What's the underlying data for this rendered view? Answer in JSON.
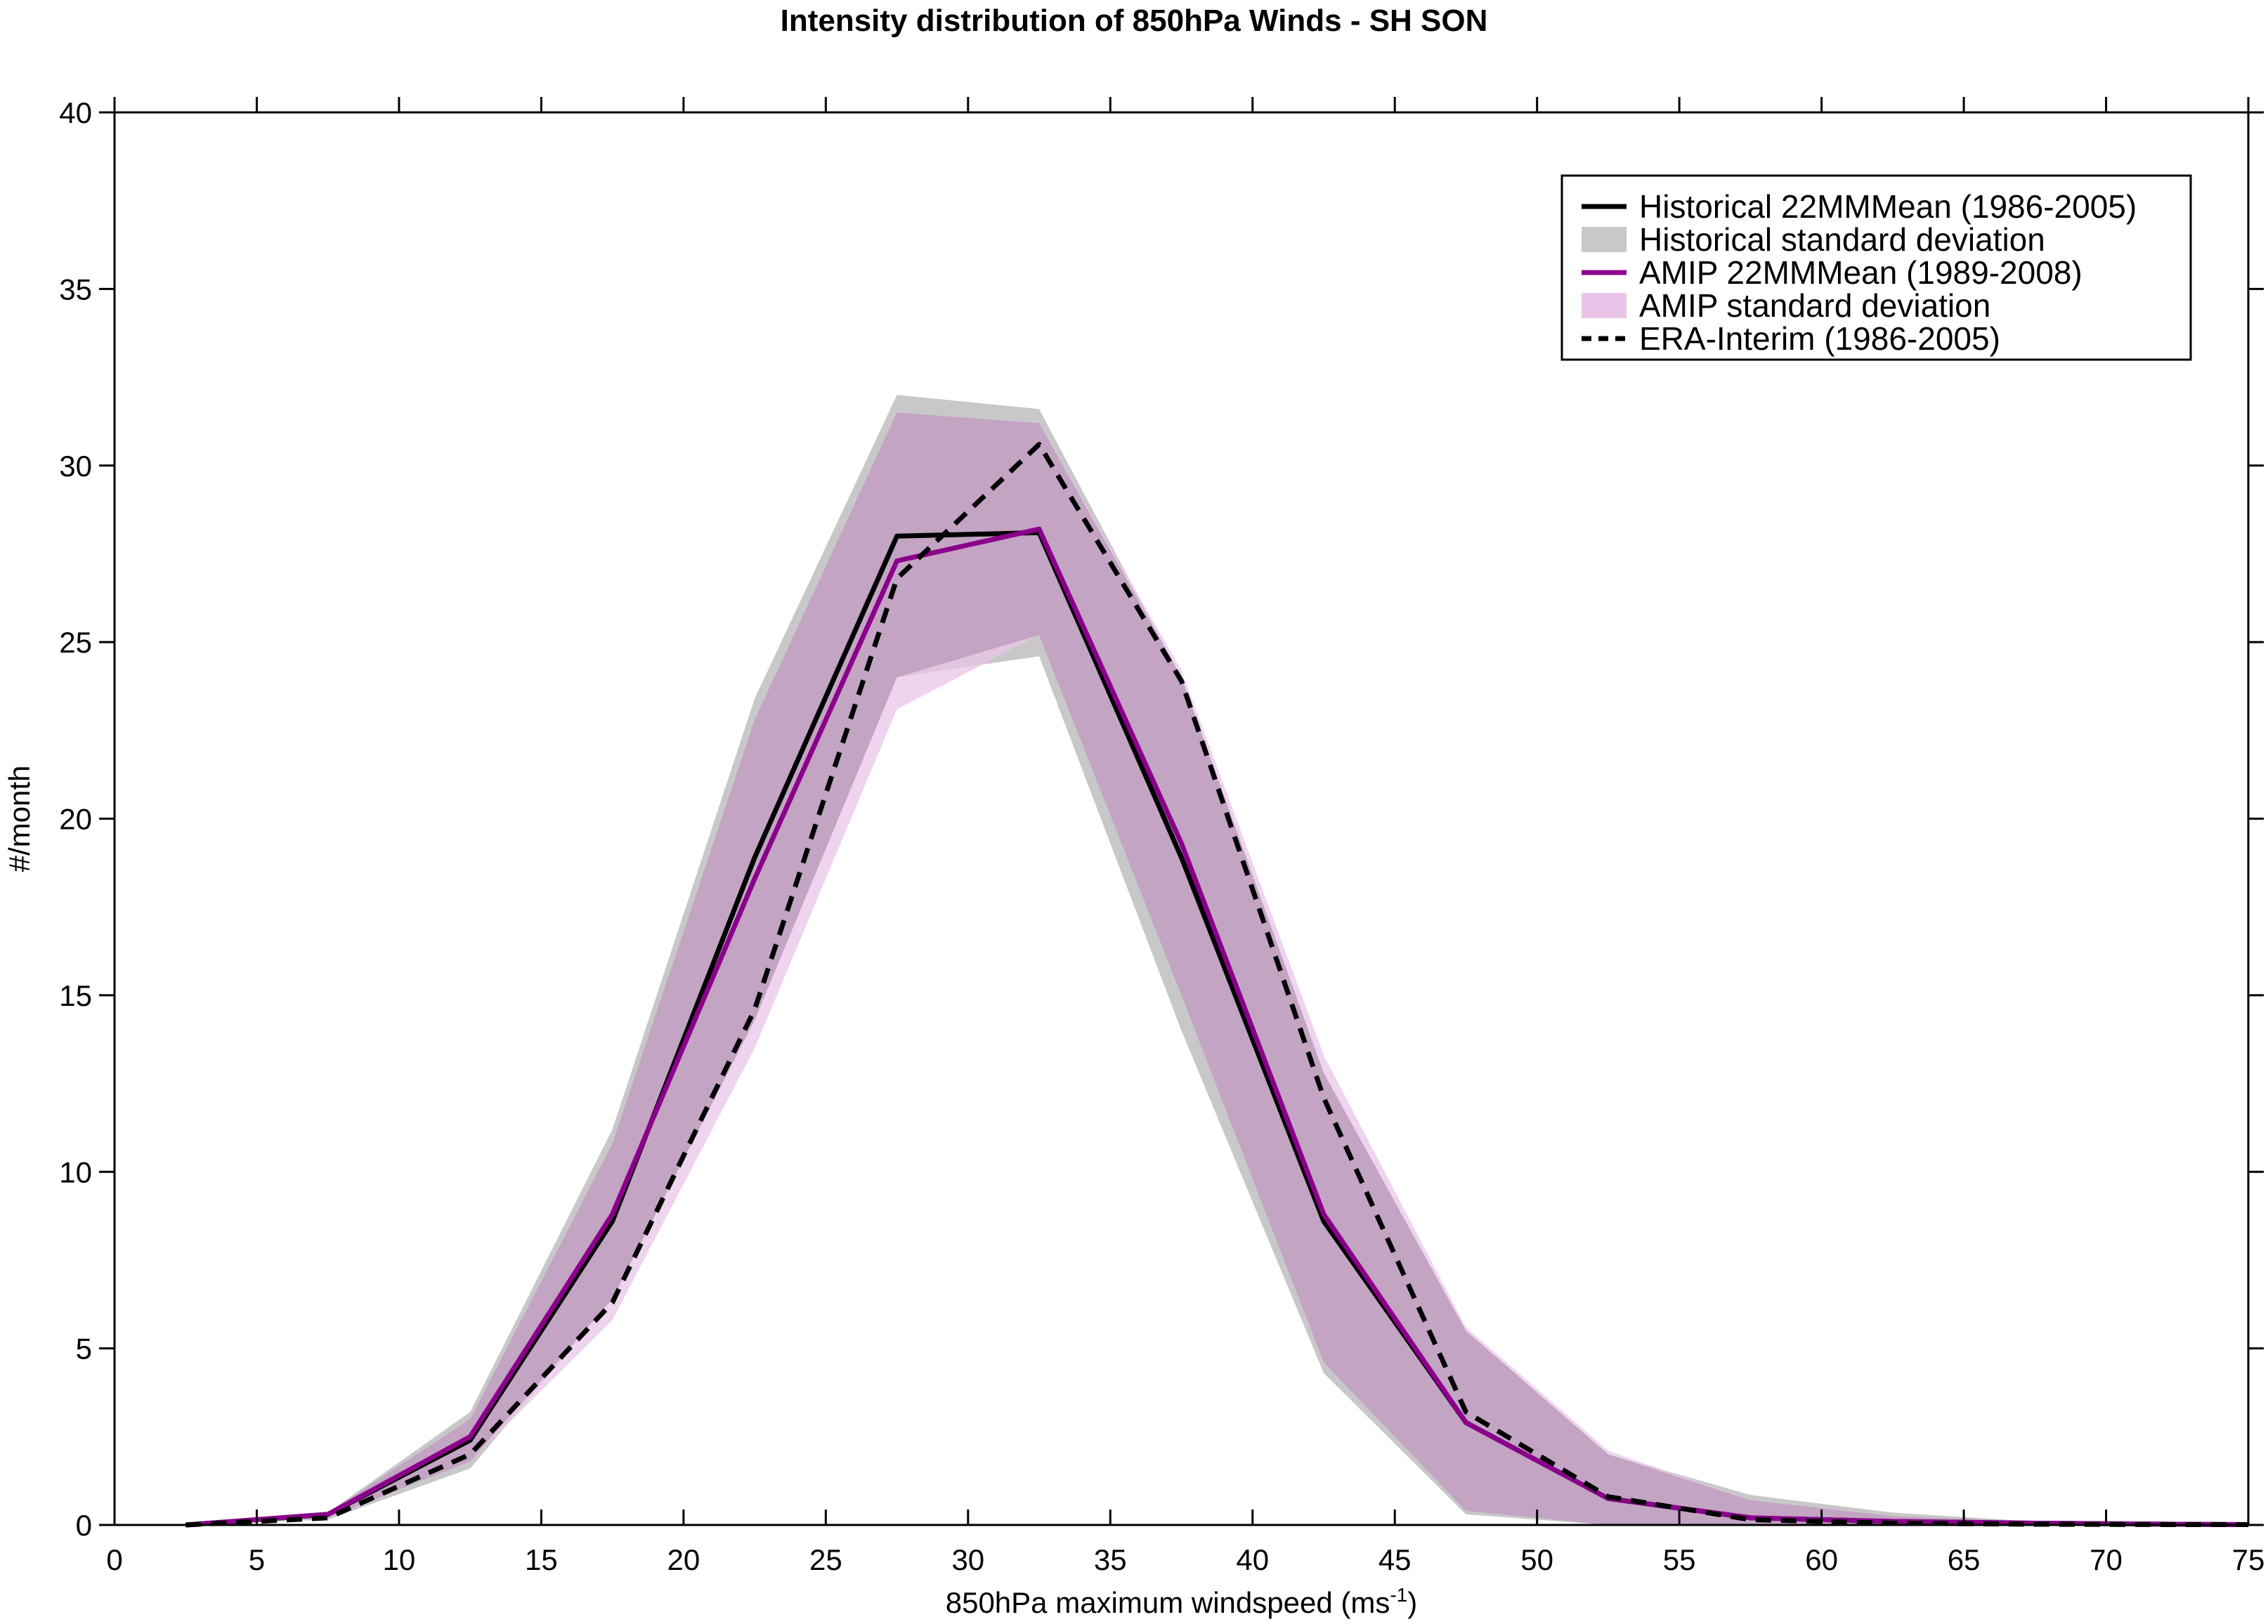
{
  "chart_data": {
    "type": "line",
    "title": "Intensity distribution of 850hPa Winds - SH SON",
    "xlabel": {
      "main": "850hPa maximum windspeed (ms",
      "sup": "-1",
      "close": ")"
    },
    "ylabel": "#/month",
    "xlim": [
      0,
      75
    ],
    "ylim": [
      0,
      40
    ],
    "xticks": [
      0,
      5,
      10,
      15,
      20,
      25,
      30,
      35,
      40,
      45,
      50,
      55,
      60,
      65,
      70,
      75
    ],
    "yticks": [
      0,
      5,
      10,
      15,
      20,
      25,
      30,
      35,
      40
    ],
    "legend_position": "top-right",
    "grid": false,
    "x": [
      2.5,
      7.5,
      12.5,
      17.5,
      22.5,
      27.5,
      32.5,
      37.5,
      42.5,
      47.5,
      52.5,
      57.5,
      62.5,
      67.5,
      72.5,
      75
    ],
    "bands": [
      {
        "name": "Historical standard deviation",
        "color": "#c8c8c8",
        "lower": [
          0,
          0.15,
          1.6,
          6.4,
          14.3,
          24.0,
          24.6,
          14.0,
          4.3,
          0.3,
          0,
          0,
          0,
          0,
          0,
          0
        ],
        "upper": [
          0.05,
          0.35,
          3.2,
          11.2,
          23.4,
          32.0,
          31.6,
          24.0,
          12.8,
          5.5,
          2.0,
          0.85,
          0.35,
          0.1,
          0.05,
          0.03
        ]
      },
      {
        "name": "AMIP standard deviation",
        "color": "#e8c5e8",
        "lower": [
          0,
          0.2,
          1.8,
          5.8,
          13.5,
          23.1,
          25.2,
          15.0,
          4.6,
          0.4,
          0,
          0,
          0,
          0,
          0,
          0
        ],
        "upper": [
          0.05,
          0.35,
          3.0,
          10.8,
          22.8,
          31.5,
          31.2,
          24.2,
          13.3,
          5.6,
          2.1,
          0.7,
          0.25,
          0.1,
          0.05,
          0.03
        ]
      }
    ],
    "series": [
      {
        "name": "Historical 22MMMean (1986-2005)",
        "color": "#000000",
        "dash": "",
        "values": [
          0.0,
          0.3,
          2.4,
          8.6,
          18.9,
          28.0,
          28.1,
          18.9,
          8.6,
          2.9,
          0.75,
          0.2,
          0.1,
          0.05,
          0.02,
          0.01
        ]
      },
      {
        "name": "AMIP 22MMMean (1989-2008)",
        "color": "#8b008b",
        "dash": "",
        "values": [
          0.0,
          0.3,
          2.5,
          8.8,
          18.3,
          27.3,
          28.2,
          19.3,
          8.8,
          2.9,
          0.75,
          0.2,
          0.1,
          0.05,
          0.02,
          0.01
        ]
      },
      {
        "name": "ERA-Interim (1986-2005)",
        "color": "#000000",
        "dash": "22,14",
        "values": [
          0.0,
          0.2,
          2.0,
          6.3,
          14.6,
          26.8,
          30.6,
          23.9,
          12.1,
          3.2,
          0.8,
          0.15,
          0.05,
          0.02,
          0.01,
          0.01
        ]
      }
    ],
    "legend_entries": [
      {
        "name": "Historical 22MMMean (1986-2005)",
        "kind": "line",
        "color": "#000000",
        "dash": ""
      },
      {
        "name": "Historical standard deviation",
        "kind": "patch",
        "color": "#c8c8c8"
      },
      {
        "name": "AMIP 22MMMean (1989-2008)",
        "kind": "line",
        "color": "#8b008b",
        "dash": ""
      },
      {
        "name": "AMIP standard deviation",
        "kind": "patch",
        "color": "#e8c5e8"
      },
      {
        "name": "ERA-Interim (1986-2005)",
        "kind": "line",
        "color": "#000000",
        "dash": "22,14"
      }
    ]
  }
}
